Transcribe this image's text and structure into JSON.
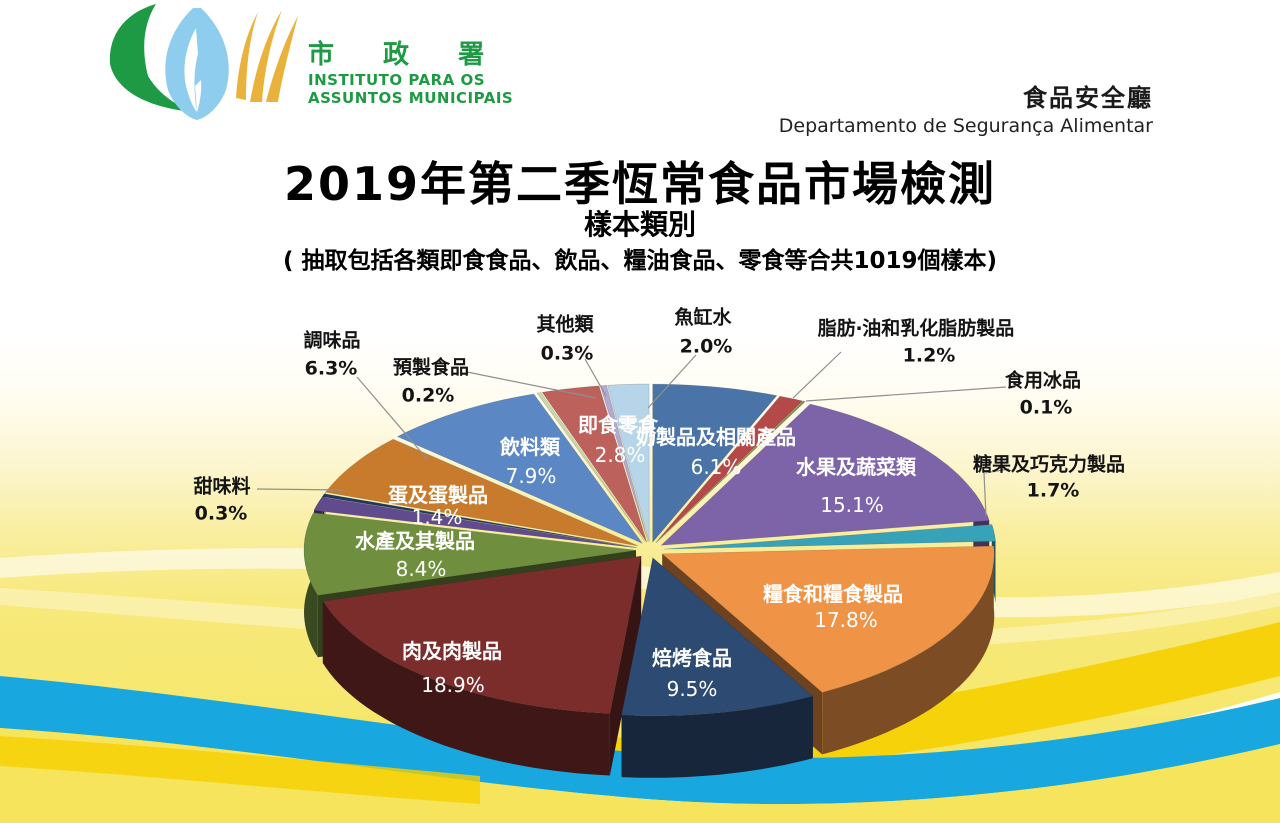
{
  "header": {
    "logo": {
      "cjk": "市 政 署",
      "latin_line1": "INSTITUTO PARA OS",
      "latin_line2": "ASSUNTOS MUNICIPAIS",
      "brand_green": "#1e9a44",
      "brand_blue": "#7cc3e8",
      "brand_gold": "#e9b23c"
    },
    "dept_cjk": "食品安全廳",
    "dept_pt": "Departamento de Segurança Alimentar"
  },
  "title": "2019年第二季恆常食品市場檢測",
  "subtitle": "樣本類別",
  "note": "( 抽取包括各類即食食品、飲品、糧油食品、零食等合共1019個樣本)",
  "chart_data": {
    "type": "pie",
    "style": "3d-exploded",
    "unit": "%",
    "total_samples": 1019,
    "legend_position": "labels-on-chart",
    "slices": [
      {
        "label": "奶製品及相關產品",
        "value": 6.1,
        "color": "#4a74a8",
        "placement": "inside"
      },
      {
        "label": "脂肪‧油和乳化脂肪製品",
        "value": 1.2,
        "color": "#b5494a",
        "placement": "outside"
      },
      {
        "label": "食用冰品",
        "value": 0.1,
        "color": "#6d9440",
        "placement": "outside"
      },
      {
        "label": "水果及蔬菜類",
        "value": 15.1,
        "color": "#7d63a8",
        "placement": "inside"
      },
      {
        "label": "糖果及巧克力製品",
        "value": 1.7,
        "color": "#38a2b8",
        "placement": "outside"
      },
      {
        "label": "糧食和糧食製品",
        "value": 17.8,
        "color": "#ef9346",
        "placement": "inside"
      },
      {
        "label": "焙烤食品",
        "value": 9.5,
        "color": "#2c4a72",
        "placement": "inside"
      },
      {
        "label": "肉及肉製品",
        "value": 18.9,
        "color": "#7b2d2c",
        "placement": "inside"
      },
      {
        "label": "水產及其製品",
        "value": 8.4,
        "color": "#6f8f3e",
        "placement": "inside"
      },
      {
        "label": "蛋及蛋製品",
        "value": 1.4,
        "color": "#5f4b8e",
        "placement": "inside"
      },
      {
        "label": "甜味料",
        "value": 0.3,
        "color": "#1f3864",
        "placement": "outside"
      },
      {
        "label": "調味品",
        "value": 6.3,
        "color": "#c97b2d",
        "placement": "outside"
      },
      {
        "label": "飲料類",
        "value": 7.9,
        "color": "#5b87c4",
        "placement": "inside"
      },
      {
        "label": "預製食品",
        "value": 0.2,
        "color": "#cdd9a3",
        "placement": "outside"
      },
      {
        "label": "即食零食",
        "value": 2.8,
        "color": "#bd615d",
        "placement": "inside"
      },
      {
        "label": "其他類",
        "value": 0.3,
        "color": "#b2a8d0",
        "placement": "outside"
      },
      {
        "label": "魚缸水",
        "value": 2.0,
        "color": "#b7d5e8",
        "placement": "outside"
      }
    ]
  }
}
